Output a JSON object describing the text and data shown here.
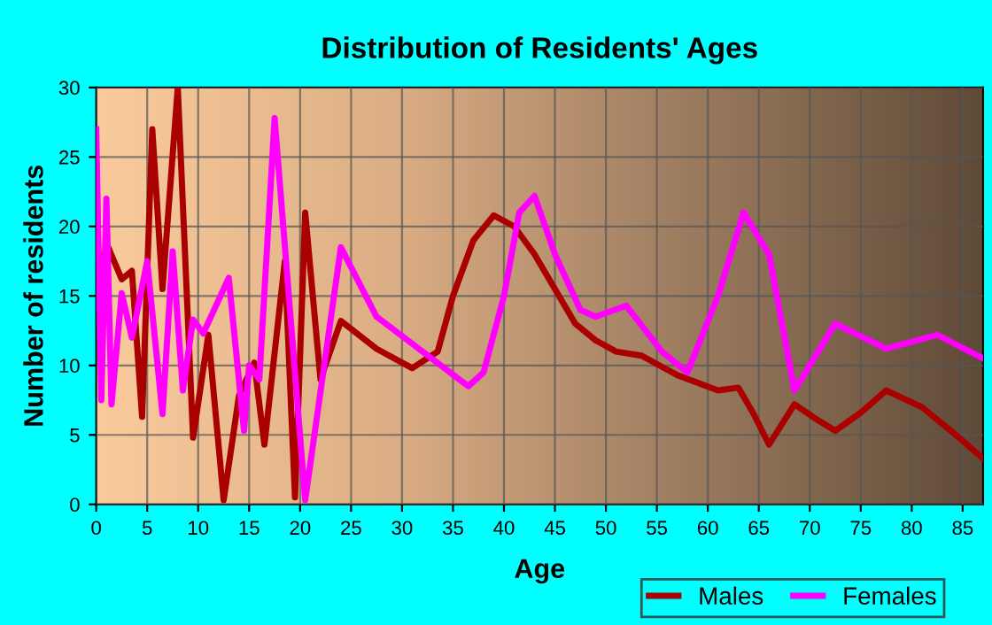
{
  "chart_data": {
    "type": "line",
    "title": "Distribution of Residents' Ages",
    "xlabel": "Age",
    "ylabel": "Number of residents",
    "xlim": [
      0,
      87
    ],
    "xticks": [
      0,
      5,
      10,
      15,
      20,
      25,
      30,
      35,
      40,
      45,
      50,
      55,
      60,
      65,
      70,
      75,
      80,
      85
    ],
    "ylim": [
      0,
      30
    ],
    "yticks": [
      0,
      5,
      10,
      15,
      20,
      25,
      30
    ],
    "grid": true,
    "legend": "bottom right",
    "marker": "none",
    "line_style": "solid",
    "series": [
      {
        "name": "Males",
        "color": "#aa0000",
        "x": [
          0,
          0.5,
          1,
          2.5,
          3.5,
          4.5,
          5.5,
          6.5,
          8,
          9.5,
          11,
          12.5,
          14,
          15.5,
          16.5,
          18.5,
          19.5,
          20.5,
          22,
          24,
          27.5,
          31,
          33.5,
          35,
          37,
          39,
          41,
          43,
          45,
          47,
          49,
          51,
          53.5,
          57,
          61,
          63,
          64.5,
          66,
          68.5,
          70.5,
          72.5,
          75,
          77.5,
          81,
          84,
          87
        ],
        "values": [
          19.3,
          16.5,
          18.8,
          16.2,
          16.8,
          6.3,
          27,
          15.5,
          30,
          4.8,
          12.2,
          0.3,
          7.8,
          10.2,
          4.3,
          17.5,
          0.5,
          21,
          9,
          13.2,
          11.2,
          9.8,
          11,
          15,
          19,
          20.8,
          20,
          18,
          15.5,
          13,
          11.8,
          11,
          10.7,
          9.3,
          8.2,
          8.4,
          6.5,
          4.3,
          7.2,
          6.2,
          5.3,
          6.6,
          8.2,
          7,
          5.2,
          3.3
        ]
      },
      {
        "name": "Females",
        "color": "#ff00ff",
        "x": [
          0,
          0.5,
          1,
          1.5,
          2.5,
          3.5,
          5,
          6.5,
          7.5,
          8.5,
          9.5,
          10.5,
          13,
          14.5,
          15,
          16,
          17.5,
          20.5,
          24,
          27.5,
          32,
          36.5,
          38,
          40,
          41.5,
          43,
          45,
          47.5,
          49,
          52,
          55.5,
          58,
          61,
          63.5,
          66,
          68.5,
          72.5,
          77.5,
          82.5,
          87
        ],
        "values": [
          27,
          7.5,
          22,
          7.2,
          15.2,
          12,
          17.5,
          6.5,
          18.2,
          8.2,
          13.3,
          12.3,
          16.3,
          5.3,
          10,
          9,
          27.8,
          0.3,
          18.5,
          13.5,
          11,
          8.5,
          9.5,
          15,
          21,
          22.2,
          18,
          14,
          13.5,
          14.3,
          11,
          9.5,
          15,
          21,
          18,
          8.2,
          13,
          11.2,
          12.2,
          10.5
        ]
      }
    ]
  }
}
